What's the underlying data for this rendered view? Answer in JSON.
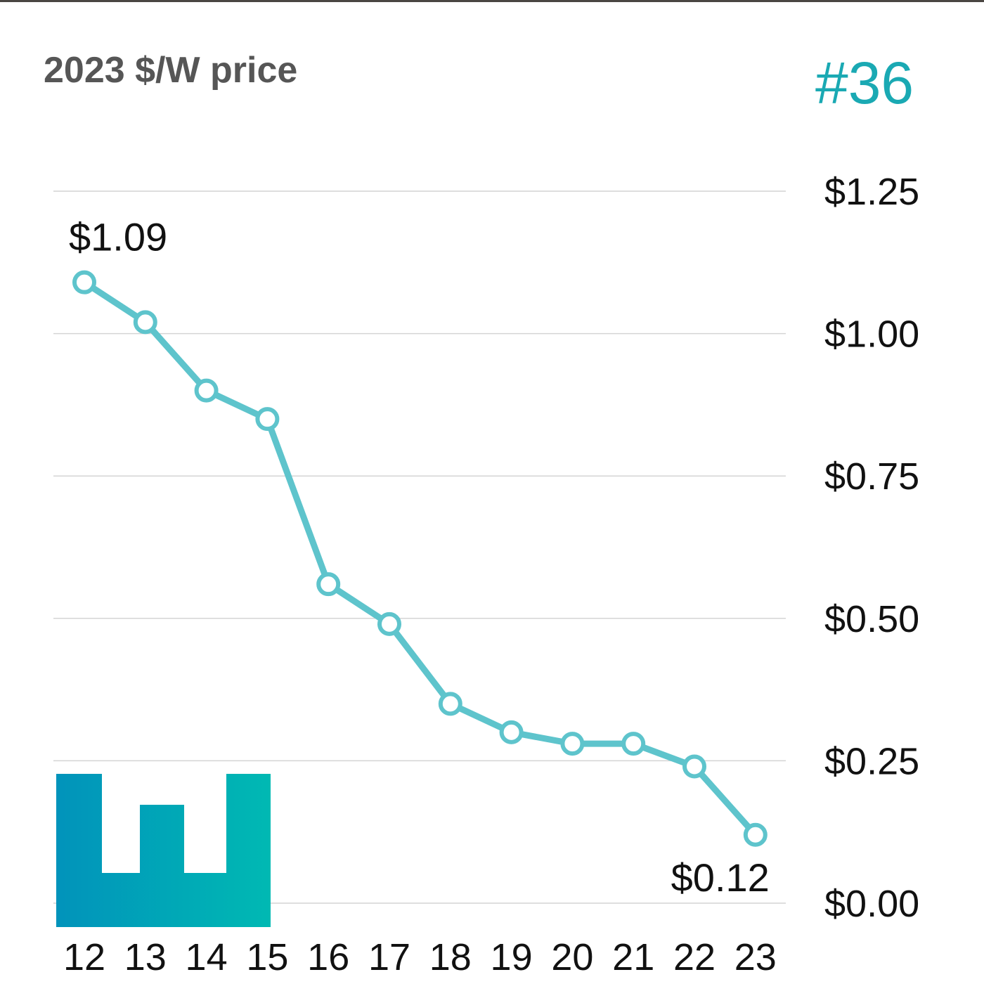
{
  "header": {
    "title": "2023 $/W price",
    "post_number": "#36"
  },
  "colors": {
    "line": "#5ec4cc",
    "point_fill": "#ffffff",
    "grid": "#d4d4d4",
    "logo_gradient_start": "#0193bb",
    "logo_gradient_end": "#00b9b3"
  },
  "logo": {
    "icon": "w-logo-icon"
  },
  "chart_data": {
    "type": "line",
    "title": "2023 $/W price",
    "categories": [
      "12",
      "13",
      "14",
      "15",
      "16",
      "17",
      "18",
      "19",
      "20",
      "21",
      "22",
      "23"
    ],
    "series": [
      {
        "values": [
          1.09,
          1.02,
          0.9,
          0.85,
          0.56,
          0.49,
          0.35,
          0.3,
          0.28,
          0.28,
          0.24,
          0.12
        ]
      }
    ],
    "y_ticks": [
      {
        "value": 1.25,
        "label": "$1.25"
      },
      {
        "value": 1.0,
        "label": "$1.00"
      },
      {
        "value": 0.75,
        "label": "$0.75"
      },
      {
        "value": 0.5,
        "label": "$0.50"
      },
      {
        "value": 0.25,
        "label": "$0.25"
      },
      {
        "value": 0.0,
        "label": "$0.00"
      }
    ],
    "ylim": [
      0,
      1.25
    ],
    "y_axis_position": "right",
    "grid": true,
    "annotations": [
      {
        "index": 0,
        "label": "$1.09"
      },
      {
        "index": 11,
        "label": "$0.12"
      }
    ]
  }
}
